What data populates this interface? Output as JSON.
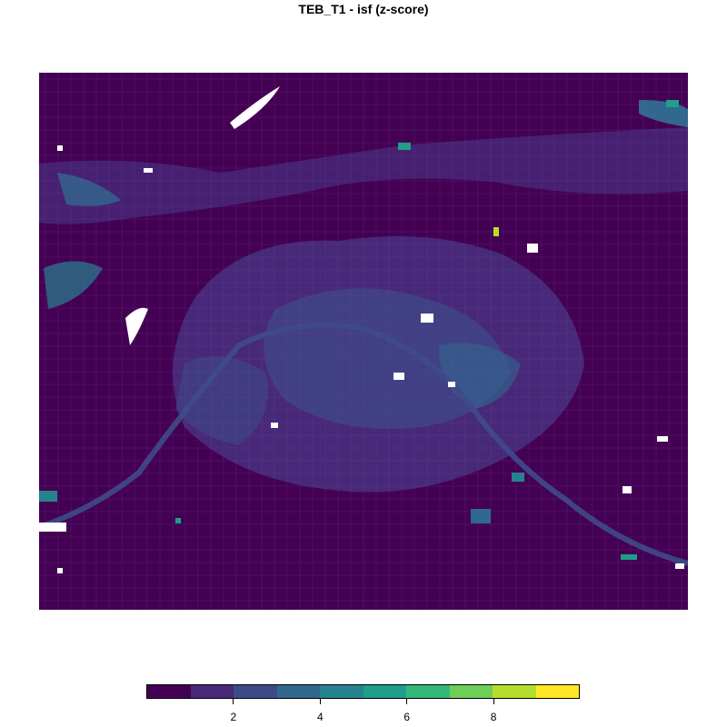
{
  "title": "TEB_T1 - isf  (z-score)",
  "legend": {
    "colors": [
      "#440154",
      "#482878",
      "#3e4a89",
      "#31688e",
      "#26828e",
      "#1f9e89",
      "#35b779",
      "#6ece58",
      "#b5de2b",
      "#fde725"
    ],
    "ticks": [
      {
        "value": 2,
        "label": "2"
      },
      {
        "value": 4,
        "label": "4"
      },
      {
        "value": 6,
        "label": "6"
      },
      {
        "value": 8,
        "label": "8"
      }
    ],
    "range": [
      0,
      10
    ]
  }
}
